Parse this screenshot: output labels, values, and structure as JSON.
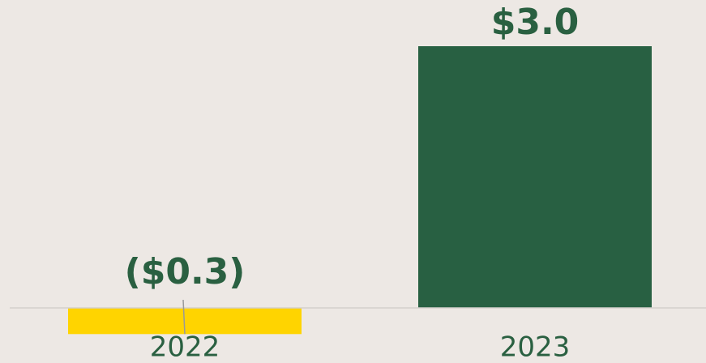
{
  "chart_data": {
    "type": "bar",
    "categories": [
      "2022",
      "2023"
    ],
    "values": [
      -0.3,
      3.0
    ],
    "value_labels": [
      "($0.3)",
      "$3.0"
    ],
    "colors": [
      "#ffd400",
      "#286042"
    ],
    "ylim": [
      -0.6,
      3.5
    ]
  }
}
